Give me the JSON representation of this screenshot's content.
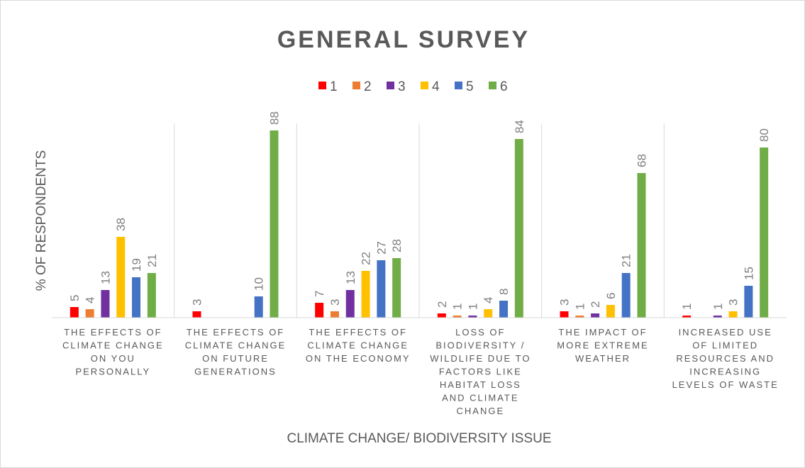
{
  "chart_data": {
    "type": "bar",
    "title": "GENERAL SURVEY",
    "xlabel": "CLIMATE CHANGE/ BIODIVERSITY ISSUE",
    "ylabel": "% OF RESPONDENTS",
    "ylim": [
      0,
      100
    ],
    "grid": false,
    "legend_position": "top",
    "categories": [
      [
        "THE EFFECTS OF",
        "CLIMATE CHANGE",
        "ON YOU",
        "PERSONALLY"
      ],
      [
        "THE EFFECTS OF",
        "CLIMATE CHANGE",
        "ON FUTURE",
        "GENERATIONS"
      ],
      [
        "THE EFFECTS OF",
        "CLIMATE CHANGE",
        "ON THE ECONOMY"
      ],
      [
        "LOSS OF",
        "BIODIVERSITY /",
        "WILDLIFE DUE TO",
        "FACTORS LIKE",
        "HABITAT LOSS",
        "AND CLIMATE",
        "CHANGE"
      ],
      [
        "THE IMPACT OF",
        "MORE EXTREME",
        "WEATHER"
      ],
      [
        "INCREASED USE",
        "OF LIMITED",
        "RESOURCES AND",
        "INCREASING",
        "LEVELS OF WASTE"
      ]
    ],
    "series": [
      {
        "name": "1",
        "color": "#ff0000",
        "values": [
          5,
          3,
          7,
          2,
          3,
          1
        ]
      },
      {
        "name": "2",
        "color": "#ed7d31",
        "values": [
          4,
          null,
          3,
          1,
          1,
          null
        ]
      },
      {
        "name": "3",
        "color": "#7030a0",
        "values": [
          13,
          null,
          13,
          1,
          2,
          1
        ]
      },
      {
        "name": "4",
        "color": "#ffc000",
        "values": [
          38,
          null,
          22,
          4,
          6,
          3
        ]
      },
      {
        "name": "5",
        "color": "#4472c4",
        "values": [
          19,
          10,
          27,
          8,
          21,
          15
        ]
      },
      {
        "name": "6",
        "color": "#70ad47",
        "values": [
          21,
          88,
          28,
          84,
          68,
          80
        ]
      }
    ]
  }
}
